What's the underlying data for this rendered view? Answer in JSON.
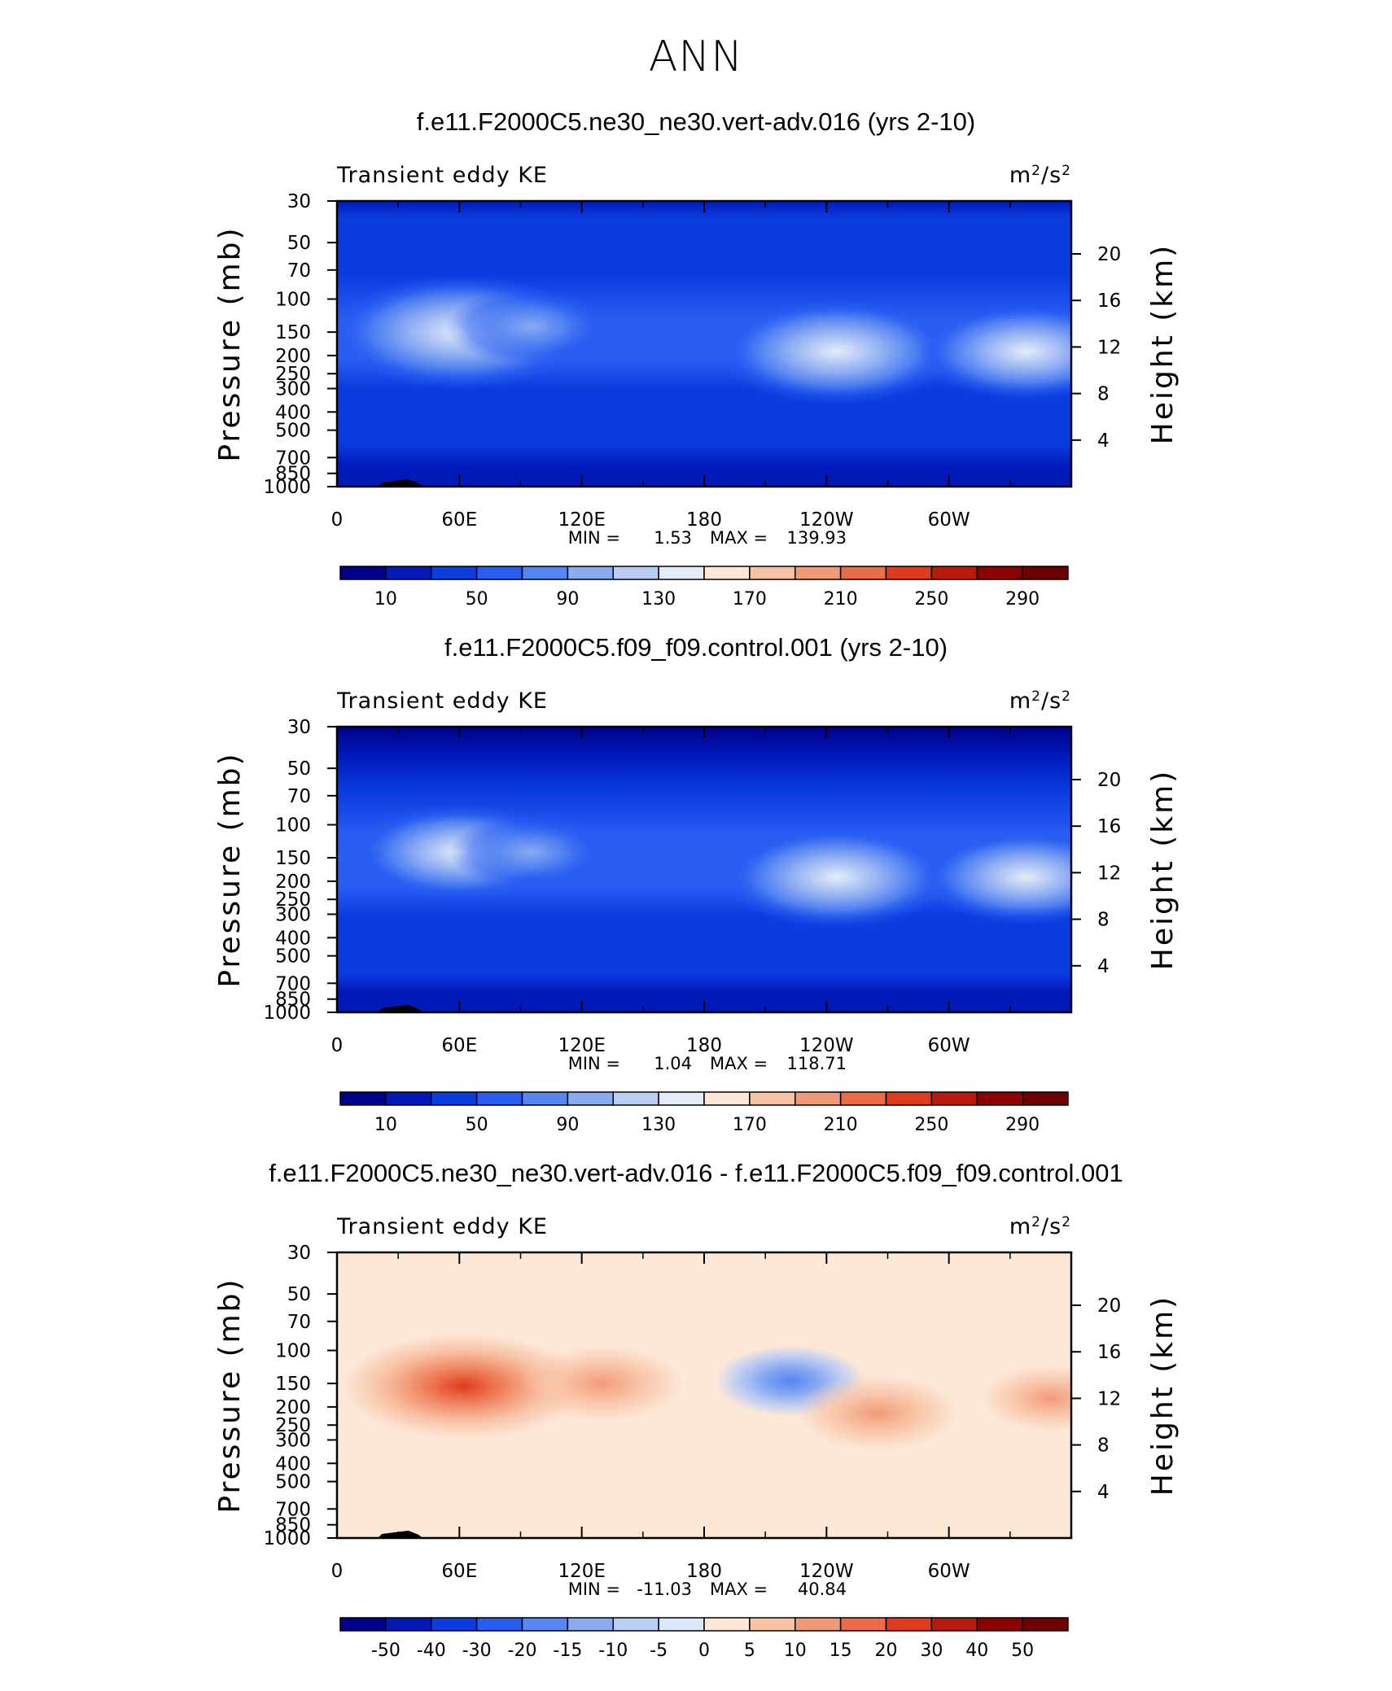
{
  "figure_title": "ANN",
  "chart_data": [
    {
      "type": "heatmap",
      "title": "f.e11.F2000C5.ne30_ne30.vert-adv.016 (yrs 2-10)",
      "subtitle_left": "Transient eddy KE",
      "units": "m²/s²",
      "units_base": "m",
      "units_sup1": "2",
      "units_mid": "/s",
      "units_sup2": "2",
      "ylabel": "Pressure (mb)",
      "ylabel2": "Height (km)",
      "xticks": [
        "0",
        "60E",
        "120E",
        "180",
        "120W",
        "60W"
      ],
      "yticks": [
        "30",
        "50",
        "70",
        "100",
        "150",
        "200",
        "250",
        "300",
        "400",
        "500",
        "700",
        "850",
        "1000"
      ],
      "y2ticks": [
        "20",
        "16",
        "12",
        "8",
        "4"
      ],
      "min_label": "MIN =",
      "min_value": "1.53",
      "max_label": "MAX =",
      "max_value": "139.93",
      "colorbar_labels": [
        "10",
        "50",
        "90",
        "130",
        "170",
        "210",
        "250",
        "290"
      ],
      "features": [
        {
          "lon": 60,
          "p": 150,
          "value": 140
        },
        {
          "lon": 95,
          "p": 140,
          "value": 75
        },
        {
          "lon": 245,
          "p": 190,
          "value": 125
        },
        {
          "lon": 338,
          "p": 190,
          "value": 110
        }
      ]
    },
    {
      "type": "heatmap",
      "title": "f.e11.F2000C5.f09_f09.control.001 (yrs 2-10)",
      "subtitle_left": "Transient eddy KE",
      "units": "m²/s²",
      "units_base": "m",
      "units_sup1": "2",
      "units_mid": "/s",
      "units_sup2": "2",
      "ylabel": "Pressure (mb)",
      "ylabel2": "Height (km)",
      "xticks": [
        "0",
        "60E",
        "120E",
        "180",
        "120W",
        "60W"
      ],
      "yticks": [
        "30",
        "50",
        "70",
        "100",
        "150",
        "200",
        "250",
        "300",
        "400",
        "500",
        "700",
        "850",
        "1000"
      ],
      "y2ticks": [
        "20",
        "16",
        "12",
        "8",
        "4"
      ],
      "min_label": "MIN =",
      "min_value": "1.04",
      "max_label": "MAX =",
      "max_value": "118.71",
      "colorbar_labels": [
        "10",
        "50",
        "90",
        "130",
        "170",
        "210",
        "250",
        "290"
      ],
      "features": [
        {
          "lon": 60,
          "p": 140,
          "value": 105
        },
        {
          "lon": 95,
          "p": 140,
          "value": 70
        },
        {
          "lon": 245,
          "p": 190,
          "value": 118
        },
        {
          "lon": 338,
          "p": 190,
          "value": 105
        }
      ]
    },
    {
      "type": "heatmap",
      "title": "f.e11.F2000C5.ne30_ne30.vert-adv.016 - f.e11.F2000C5.f09_f09.control.001",
      "subtitle_left": "Transient eddy KE",
      "units": "m²/s²",
      "units_base": "m",
      "units_sup1": "2",
      "units_mid": "/s",
      "units_sup2": "2",
      "ylabel": "Pressure (mb)",
      "ylabel2": "Height (km)",
      "xticks": [
        "0",
        "60E",
        "120E",
        "180",
        "120W",
        "60W"
      ],
      "yticks": [
        "30",
        "50",
        "70",
        "100",
        "150",
        "200",
        "250",
        "300",
        "400",
        "500",
        "700",
        "850",
        "1000"
      ],
      "y2ticks": [
        "20",
        "16",
        "12",
        "8",
        "4"
      ],
      "min_label": "MIN =",
      "min_value": "-11.03",
      "max_label": "MAX =",
      "max_value": "40.84",
      "colorbar_labels": [
        "-50",
        "-40",
        "-30",
        "-20",
        "-15",
        "-10",
        "-5",
        "0",
        "5",
        "10",
        "15",
        "20",
        "30",
        "40",
        "50"
      ],
      "features": [
        {
          "lon": 62,
          "p": 155,
          "value": 40
        },
        {
          "lon": 130,
          "p": 150,
          "value": 15
        },
        {
          "lon": 222,
          "p": 145,
          "value": -11
        },
        {
          "lon": 265,
          "p": 215,
          "value": 15
        },
        {
          "lon": 350,
          "p": 180,
          "value": 8
        }
      ]
    }
  ],
  "palettes": {
    "abs": [
      "#00008b",
      "#0019b8",
      "#0a3ce0",
      "#2a5df2",
      "#5686f2",
      "#8aaaf2",
      "#b9cdf5",
      "#e4ecfa",
      "#fde8d8",
      "#f8c2a4",
      "#f29a78",
      "#ec6c47",
      "#e03b1e",
      "#b81a0e",
      "#8c0000"
    ],
    "diff": [
      "#00008b",
      "#0019b8",
      "#0a3ce0",
      "#2a5df2",
      "#5686f2",
      "#8aaaf2",
      "#b9cdf5",
      "#dbe8fa",
      "#fde8d8",
      "#f8c2a4",
      "#f29a78",
      "#ec6c47",
      "#e03b1e",
      "#b81a0e",
      "#8c0000",
      "#6e0000"
    ]
  }
}
